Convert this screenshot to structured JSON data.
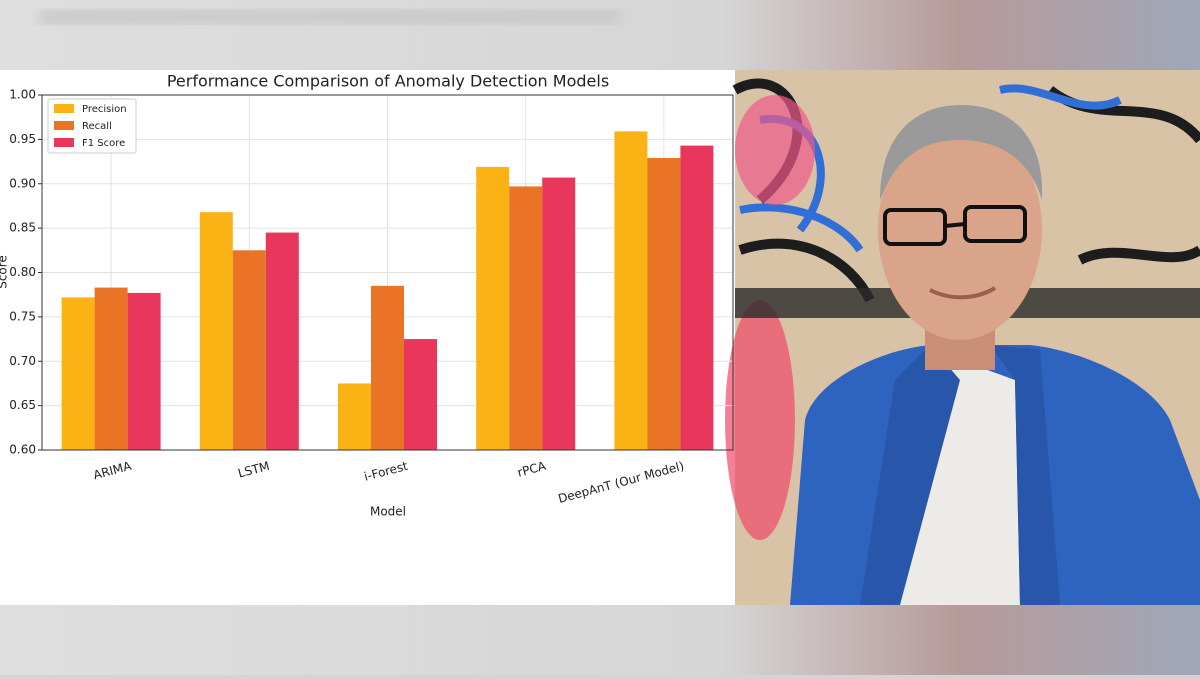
{
  "chart_data": {
    "type": "bar",
    "title": "Performance Comparison of Anomaly Detection Models",
    "x_label": "Model",
    "y_label": "Score",
    "categories": [
      "ARIMA",
      "LSTM",
      "i-Forest",
      "rPCA",
      "DeepAnT (Our Model)"
    ],
    "series": [
      {
        "name": "Precision",
        "color": "#fbb215",
        "values": [
          0.772,
          0.868,
          0.675,
          0.919,
          0.959
        ]
      },
      {
        "name": "Recall",
        "color": "#ea7425",
        "values": [
          0.783,
          0.825,
          0.785,
          0.897,
          0.929
        ]
      },
      {
        "name": "F1 Score",
        "color": "#e8375a",
        "values": [
          0.777,
          0.845,
          0.725,
          0.907,
          0.943
        ]
      }
    ],
    "ylim": [
      0.6,
      1.0
    ],
    "yticks": [
      {
        "value": 0.6,
        "label": "0.60"
      },
      {
        "value": 0.65,
        "label": "0.65"
      },
      {
        "value": 0.7,
        "label": "0.70"
      },
      {
        "value": 0.75,
        "label": "0.75"
      },
      {
        "value": 0.8,
        "label": "0.80"
      },
      {
        "value": 0.85,
        "label": "0.85"
      },
      {
        "value": 0.9,
        "label": "0.90"
      },
      {
        "value": 0.95,
        "label": "0.95"
      },
      {
        "value": 1.0,
        "label": "1.00"
      }
    ],
    "grid": true,
    "legend": "upper left"
  }
}
